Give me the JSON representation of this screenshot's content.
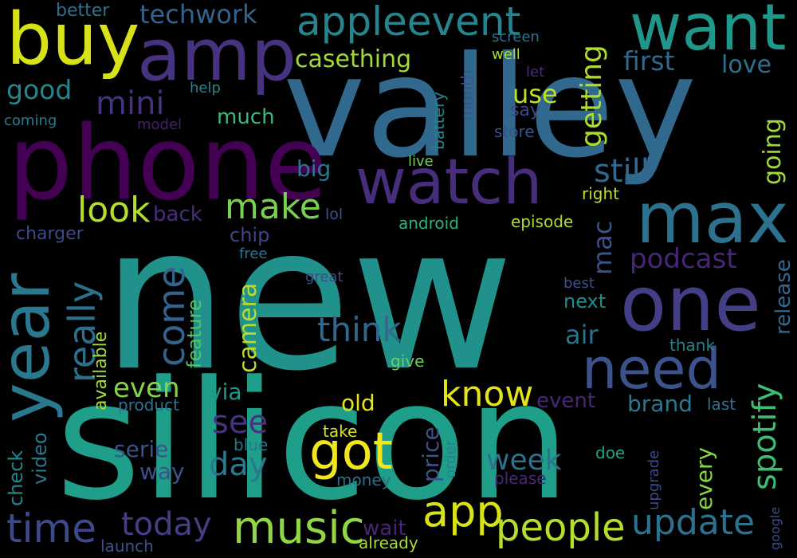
{
  "words": [
    {
      "text": "new",
      "color": "#21918c"
    },
    {
      "text": "silicon",
      "color": "#1f9e89"
    },
    {
      "text": "valley",
      "color": "#31688e"
    },
    {
      "text": "phone",
      "color": "#440154"
    },
    {
      "text": "amp",
      "color": "#46327e"
    },
    {
      "text": "buy",
      "color": "#d8e219"
    },
    {
      "text": "want",
      "color": "#1f988b"
    },
    {
      "text": "watch",
      "color": "#472d7b"
    },
    {
      "text": "max",
      "color": "#2c728e"
    },
    {
      "text": "one",
      "color": "#433e85"
    },
    {
      "text": "need",
      "color": "#3b528b"
    },
    {
      "text": "year",
      "color": "#2a788e"
    },
    {
      "text": "appleevent",
      "color": "#25858e"
    },
    {
      "text": "techwork",
      "color": "#33638d"
    },
    {
      "text": "better",
      "color": "#2d708e"
    },
    {
      "text": "casething",
      "color": "#a0da39"
    },
    {
      "text": "first",
      "color": "#31688e"
    },
    {
      "text": "love",
      "color": "#2c728e"
    },
    {
      "text": "good",
      "color": "#25858e"
    },
    {
      "text": "mini",
      "color": "#46327e"
    },
    {
      "text": "use",
      "color": "#bddf26"
    },
    {
      "text": "getting",
      "color": "#addc30"
    },
    {
      "text": "say",
      "color": "#3e4989"
    },
    {
      "text": "store",
      "color": "#3b528b"
    },
    {
      "text": "much",
      "color": "#3aba76"
    },
    {
      "text": "help",
      "color": "#24878e"
    },
    {
      "text": "model",
      "color": "#481f70"
    },
    {
      "text": "coming",
      "color": "#29798e"
    },
    {
      "text": "battery",
      "color": "#26818e"
    },
    {
      "text": "month",
      "color": "#3b528b"
    },
    {
      "text": "screen",
      "color": "#2c728e"
    },
    {
      "text": "well",
      "color": "#addc30"
    },
    {
      "text": "let",
      "color": "#472d7b"
    },
    {
      "text": "live",
      "color": "#6ece58"
    },
    {
      "text": "still",
      "color": "#31688e"
    },
    {
      "text": "big",
      "color": "#2a788e"
    },
    {
      "text": "look",
      "color": "#b5de2b"
    },
    {
      "text": "make",
      "color": "#7ad151"
    },
    {
      "text": "back",
      "color": "#472d7b"
    },
    {
      "text": "lol",
      "color": "#3b528b"
    },
    {
      "text": "going",
      "color": "#a0da39"
    },
    {
      "text": "right",
      "color": "#c2df23"
    },
    {
      "text": "charger",
      "color": "#3e4989"
    },
    {
      "text": "chip",
      "color": "#414487"
    },
    {
      "text": "android",
      "color": "#2db27d"
    },
    {
      "text": "episode",
      "color": "#addc30"
    },
    {
      "text": "mac",
      "color": "#3b528b"
    },
    {
      "text": "podcast",
      "color": "#482677"
    },
    {
      "text": "free",
      "color": "#2c728e"
    },
    {
      "text": "great",
      "color": "#3e4989"
    },
    {
      "text": "best",
      "color": "#3b528b"
    },
    {
      "text": "release",
      "color": "#31688e"
    },
    {
      "text": "really",
      "color": "#2d708e"
    },
    {
      "text": "come",
      "color": "#33638d"
    },
    {
      "text": "feature",
      "color": "#52c569"
    },
    {
      "text": "camera",
      "color": "#b8de29"
    },
    {
      "text": "next",
      "color": "#228c8d"
    },
    {
      "text": "think",
      "color": "#31688e"
    },
    {
      "text": "air",
      "color": "#2c728e"
    },
    {
      "text": "thank",
      "color": "#25858e"
    },
    {
      "text": "available",
      "color": "#a8db34"
    },
    {
      "text": "give",
      "color": "#6ece58"
    },
    {
      "text": "even",
      "color": "#86d549"
    },
    {
      "text": "via",
      "color": "#1f988b"
    },
    {
      "text": "spotify",
      "color": "#3dbc74"
    },
    {
      "text": "know",
      "color": "#e5e419"
    },
    {
      "text": "event",
      "color": "#482677"
    },
    {
      "text": "brand",
      "color": "#2a788e"
    },
    {
      "text": "last",
      "color": "#2c728e"
    },
    {
      "text": "old",
      "color": "#e5e419"
    },
    {
      "text": "product",
      "color": "#2c728e"
    },
    {
      "text": "see",
      "color": "#46327e"
    },
    {
      "text": "video",
      "color": "#2a788e"
    },
    {
      "text": "day",
      "color": "#2a788e"
    },
    {
      "text": "check",
      "color": "#24878e"
    },
    {
      "text": "got",
      "color": "#f1e51d"
    },
    {
      "text": "serie",
      "color": "#3b528b"
    },
    {
      "text": "blue",
      "color": "#29798e"
    },
    {
      "text": "take",
      "color": "#d8e219"
    },
    {
      "text": "price",
      "color": "#3b528b"
    },
    {
      "text": "order",
      "color": "#26818e"
    },
    {
      "text": "week",
      "color": "#2c728e"
    },
    {
      "text": "doe",
      "color": "#20a486"
    },
    {
      "text": "upgrade",
      "color": "#3e4989"
    },
    {
      "text": "every",
      "color": "#86d549"
    },
    {
      "text": "way",
      "color": "#3b528b"
    },
    {
      "text": "money",
      "color": "#2d708e"
    },
    {
      "text": "please",
      "color": "#482677"
    },
    {
      "text": "google",
      "color": "#3e4989"
    },
    {
      "text": "time",
      "color": "#3e4989"
    },
    {
      "text": "today",
      "color": "#433e85"
    },
    {
      "text": "music",
      "color": "#8fd744"
    },
    {
      "text": "app",
      "color": "#d8e219"
    },
    {
      "text": "people",
      "color": "#b5de2b"
    },
    {
      "text": "update",
      "color": "#2c728e"
    },
    {
      "text": "wait",
      "color": "#482677"
    },
    {
      "text": "launch",
      "color": "#3b528b"
    },
    {
      "text": "already",
      "color": "#a8db34"
    }
  ]
}
